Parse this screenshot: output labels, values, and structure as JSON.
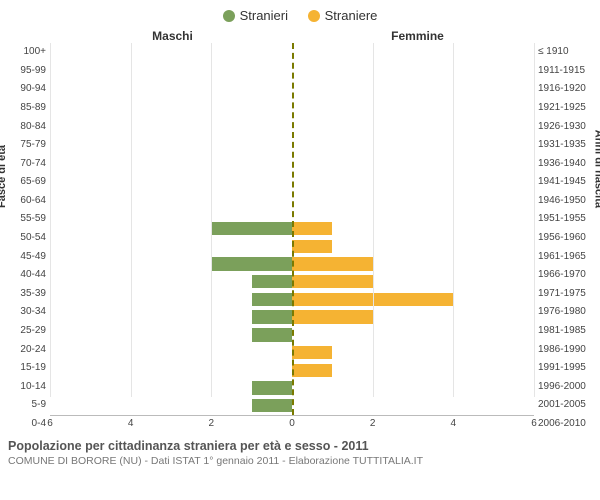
{
  "legend": {
    "male": {
      "label": "Stranieri",
      "color": "#7ba05b"
    },
    "female": {
      "label": "Straniere",
      "color": "#f5b333"
    }
  },
  "headers": {
    "left": "Maschi",
    "right": "Femmine"
  },
  "axis_labels": {
    "left": "Fasce di età",
    "right": "Anni di nascita"
  },
  "footer": {
    "title": "Popolazione per cittadinanza straniera per età e sesso - 2011",
    "subtitle": "COMUNE DI BORORE (NU) - Dati ISTAT 1° gennaio 2011 - Elaborazione TUTTITALIA.IT"
  },
  "chart": {
    "type": "population-pyramid",
    "xlim": 6,
    "xtick_step": 2,
    "background_color": "#ffffff",
    "grid_color": "#e5e5e5",
    "center_line_color": "#7a7a00",
    "bar_height_pct": 76,
    "rows": [
      {
        "age": "100+",
        "birth": "≤ 1910",
        "m": 0,
        "f": 0
      },
      {
        "age": "95-99",
        "birth": "1911-1915",
        "m": 0,
        "f": 0
      },
      {
        "age": "90-94",
        "birth": "1916-1920",
        "m": 0,
        "f": 0
      },
      {
        "age": "85-89",
        "birth": "1921-1925",
        "m": 0,
        "f": 0
      },
      {
        "age": "80-84",
        "birth": "1926-1930",
        "m": 0,
        "f": 0
      },
      {
        "age": "75-79",
        "birth": "1931-1935",
        "m": 0,
        "f": 0
      },
      {
        "age": "70-74",
        "birth": "1936-1940",
        "m": 0,
        "f": 0
      },
      {
        "age": "65-69",
        "birth": "1941-1945",
        "m": 0,
        "f": 0
      },
      {
        "age": "60-64",
        "birth": "1946-1950",
        "m": 0,
        "f": 0
      },
      {
        "age": "55-59",
        "birth": "1951-1955",
        "m": 0,
        "f": 0
      },
      {
        "age": "50-54",
        "birth": "1956-1960",
        "m": 2,
        "f": 1
      },
      {
        "age": "45-49",
        "birth": "1961-1965",
        "m": 0,
        "f": 1
      },
      {
        "age": "40-44",
        "birth": "1966-1970",
        "m": 2,
        "f": 2
      },
      {
        "age": "35-39",
        "birth": "1971-1975",
        "m": 1,
        "f": 2
      },
      {
        "age": "30-34",
        "birth": "1976-1980",
        "m": 1,
        "f": 4
      },
      {
        "age": "25-29",
        "birth": "1981-1985",
        "m": 1,
        "f": 2
      },
      {
        "age": "20-24",
        "birth": "1986-1990",
        "m": 1,
        "f": 0
      },
      {
        "age": "15-19",
        "birth": "1991-1995",
        "m": 0,
        "f": 1
      },
      {
        "age": "10-14",
        "birth": "1996-2000",
        "m": 0,
        "f": 1
      },
      {
        "age": "5-9",
        "birth": "2001-2005",
        "m": 1,
        "f": 0
      },
      {
        "age": "0-4",
        "birth": "2006-2010",
        "m": 1,
        "f": 0
      }
    ]
  }
}
